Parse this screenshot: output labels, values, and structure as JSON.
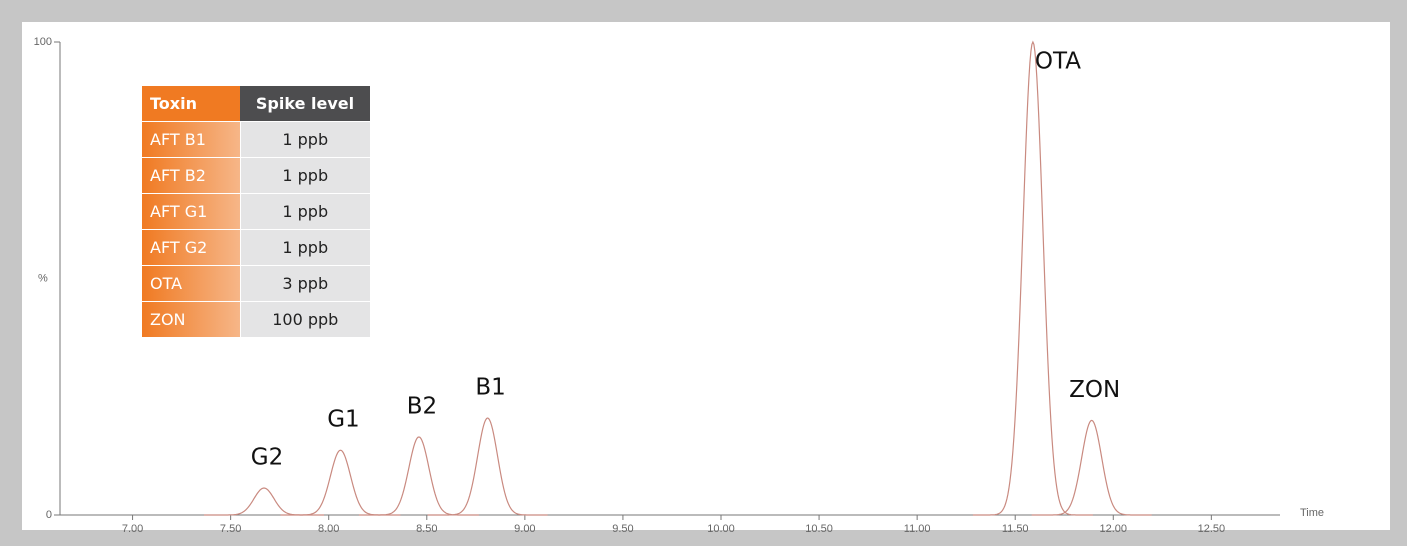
{
  "chart_data": {
    "type": "chromatogram",
    "xlabel": "Time",
    "ylabel": "%",
    "xlim": [
      6.63,
      12.85
    ],
    "ylim": [
      0,
      100
    ],
    "xticks": [
      {
        "value": 7,
        "label": "7.00"
      },
      {
        "value": 7.5,
        "label": "7.50"
      },
      {
        "value": 8,
        "label": "8.00"
      },
      {
        "value": 8.5,
        "label": "8.50"
      },
      {
        "value": 9,
        "label": "9.00"
      },
      {
        "value": 9.5,
        "label": "9.50"
      },
      {
        "value": 10,
        "label": "10.00"
      },
      {
        "value": 10.5,
        "label": "10.50"
      },
      {
        "value": 11,
        "label": "11.00"
      },
      {
        "value": 11.5,
        "label": "11.50"
      },
      {
        "value": 12,
        "label": "12.00"
      },
      {
        "value": 12.5,
        "label": "12.50"
      }
    ],
    "yticks": [
      0,
      100
    ],
    "color": "#c98a80",
    "peaks": {
      "names": [
        "G2",
        "G1",
        "B2",
        "B1",
        "OTA",
        "ZON"
      ],
      "x": [
        7.67,
        8.06,
        8.46,
        8.81,
        11.59,
        11.89
      ],
      "values": [
        5.7,
        13.7,
        16.5,
        20.5,
        100,
        20
      ]
    },
    "table": {
      "columns": [
        "Toxin",
        "Spike level"
      ],
      "rows": [
        [
          "AFT B1",
          "1 ppb"
        ],
        [
          "AFT B2",
          "1 ppb"
        ],
        [
          "AFT G1",
          "1 ppb"
        ],
        [
          "AFT G2",
          "1 ppb"
        ],
        [
          "OTA",
          "3 ppb"
        ],
        [
          "ZON",
          "100 ppb"
        ]
      ]
    }
  }
}
